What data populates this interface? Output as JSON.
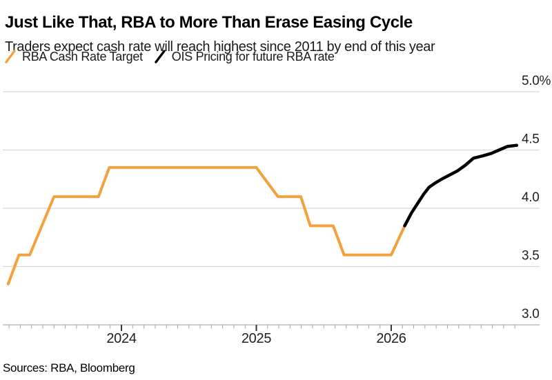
{
  "header": {
    "title": "Just Like That, RBA to More Than Erase Easing Cycle",
    "subtitle": "Traders expect cash rate will reach highest since 2011 by end of this year"
  },
  "footer": {
    "sources": "Sources: RBA, Bloomberg"
  },
  "colors": {
    "orange": "#F5A13B",
    "black": "#000000",
    "gridline": "#D8D8D8",
    "axis_line": "#AFAFAF",
    "tick_minor": "#A6A6A6",
    "tick_major": "#333333",
    "label_text": "#1F1F1F"
  },
  "chart_data": {
    "type": "line",
    "title": "Just Like That, RBA to More Than Erase Easing Cycle",
    "subtitle": "Traders expect cash rate will reach highest since 2011 by end of this year",
    "legend_position": "top-left",
    "grid": "horizontal",
    "xlabel": "",
    "ylabel": "",
    "xlim": [
      2023.12,
      2027.1
    ],
    "ylim": [
      3.0,
      5.0
    ],
    "yticks": [
      {
        "value": 5.0,
        "label": "5.0%"
      },
      {
        "value": 4.5,
        "label": "4.5"
      },
      {
        "value": 4.0,
        "label": "4.0"
      },
      {
        "value": 3.5,
        "label": "3.5"
      },
      {
        "value": 3.0,
        "label": "3.0"
      }
    ],
    "xticks_major": [
      {
        "value": 2024,
        "label": "2024"
      },
      {
        "value": 2025,
        "label": "2025"
      },
      {
        "value": 2026,
        "label": "2026"
      }
    ],
    "xticks_minor": {
      "start": 2023.1667,
      "interval_years": 0.083333,
      "end": 2026.94
    },
    "series": [
      {
        "name": "RBA Cash Rate Target",
        "color": "#F5A13B",
        "stroke_width": 4,
        "points": [
          [
            2023.16,
            3.35
          ],
          [
            2023.24,
            3.6
          ],
          [
            2023.32,
            3.6
          ],
          [
            2023.5,
            4.1
          ],
          [
            2023.83,
            4.1
          ],
          [
            2023.91,
            4.35
          ],
          [
            2025.0,
            4.35
          ],
          [
            2025.16,
            4.1
          ],
          [
            2025.33,
            4.1
          ],
          [
            2025.4,
            3.85
          ],
          [
            2025.57,
            3.85
          ],
          [
            2025.65,
            3.6
          ],
          [
            2026.0,
            3.6
          ],
          [
            2026.1,
            3.85
          ]
        ]
      },
      {
        "name": "OIS Pricing for future RBA rate",
        "color": "#000000",
        "stroke_width": 4.5,
        "points": [
          [
            2026.1,
            3.85
          ],
          [
            2026.15,
            3.96
          ],
          [
            2026.2,
            4.05
          ],
          [
            2026.24,
            4.12
          ],
          [
            2026.28,
            4.18
          ],
          [
            2026.33,
            4.22
          ],
          [
            2026.39,
            4.26
          ],
          [
            2026.44,
            4.29
          ],
          [
            2026.49,
            4.32
          ],
          [
            2026.55,
            4.37
          ],
          [
            2026.61,
            4.43
          ],
          [
            2026.68,
            4.45
          ],
          [
            2026.74,
            4.47
          ],
          [
            2026.8,
            4.5
          ],
          [
            2026.86,
            4.53
          ],
          [
            2026.93,
            4.54
          ]
        ]
      }
    ]
  }
}
